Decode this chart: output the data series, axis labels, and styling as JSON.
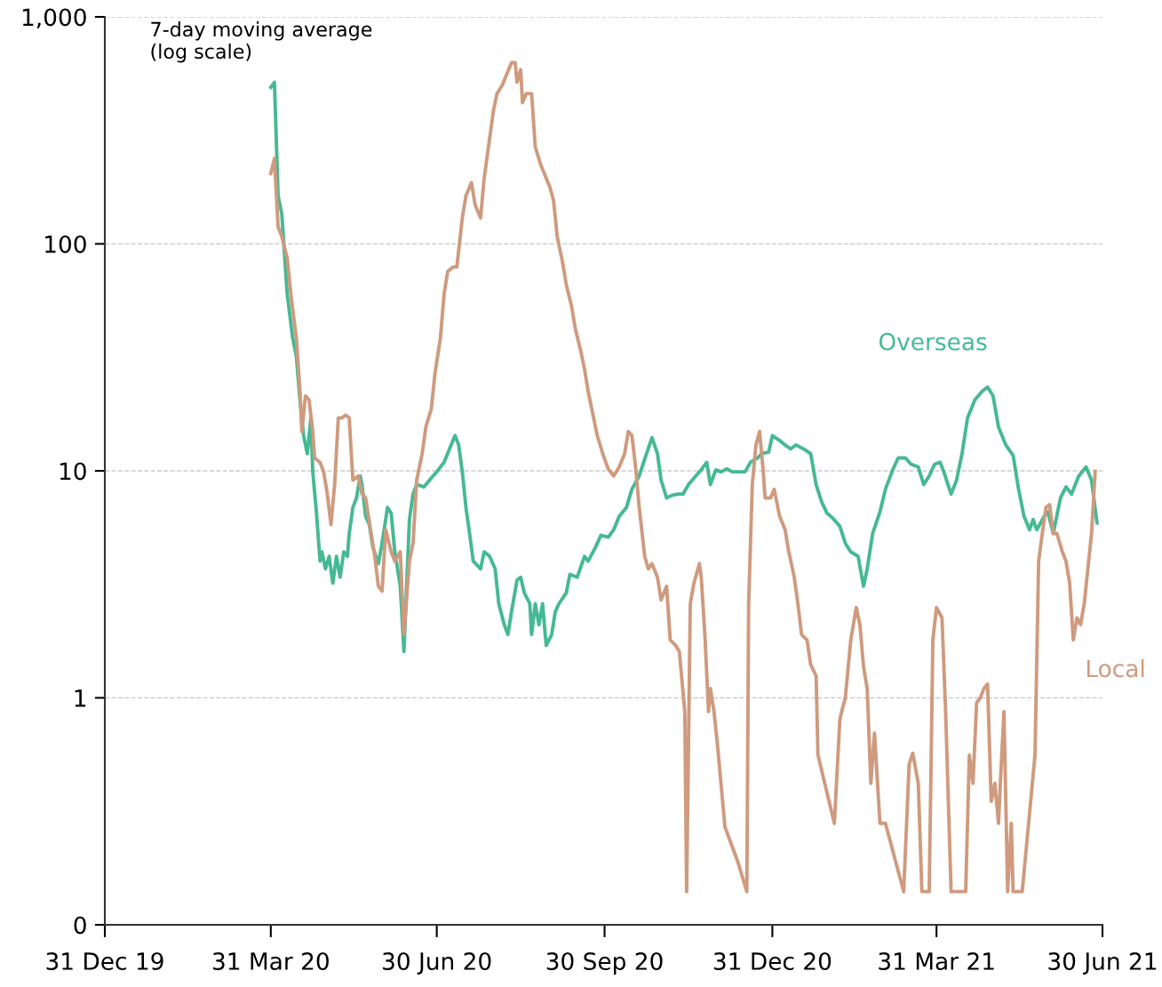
{
  "chart_data": {
    "type": "line",
    "annotations": [
      "7-day moving average\n(log scale)"
    ],
    "log": "y",
    "grid": "y",
    "legend": false,
    "marker": "none",
    "line_style": "solid",
    "xlim": [
      "2019-12-31",
      "2021-06-30"
    ],
    "xticks": [
      {
        "value": "2019-12-31",
        "label": "31 Dec 19"
      },
      {
        "value": "2020-03-31",
        "label": "31 Mar 20"
      },
      {
        "value": "2020-06-30",
        "label": "30 Jun 20"
      },
      {
        "value": "2020-09-30",
        "label": "30 Sep 20"
      },
      {
        "value": "2020-12-31",
        "label": "31 Dec 20"
      },
      {
        "value": "2021-03-31",
        "label": "31 Mar 21"
      },
      {
        "value": "2021-06-30",
        "label": "30 Jun 21"
      }
    ],
    "ylim": [
      0.1,
      1000
    ],
    "yticks": [
      {
        "value": 0.1,
        "label": "0"
      },
      1,
      10,
      100,
      {
        "value": 1000,
        "label": "1,000"
      }
    ],
    "series": [
      {
        "name": "Overseas",
        "color": "#45b994",
        "x": [
          "2020-03-31",
          "2020-04-02",
          "2020-04-04",
          "2020-04-06",
          "2020-04-09",
          "2020-04-12",
          "2020-04-14",
          "2020-04-16",
          "2020-04-18",
          "2020-04-20",
          "2020-04-22",
          "2020-04-23",
          "2020-04-25",
          "2020-04-27",
          "2020-04-28",
          "2020-04-30",
          "2020-05-02",
          "2020-05-04",
          "2020-05-06",
          "2020-05-08",
          "2020-05-10",
          "2020-05-12",
          "2020-05-13",
          "2020-05-15",
          "2020-05-17",
          "2020-05-19",
          "2020-05-20",
          "2020-05-22",
          "2020-05-24",
          "2020-05-26",
          "2020-05-29",
          "2020-05-31",
          "2020-06-03",
          "2020-06-05",
          "2020-06-07",
          "2020-06-10",
          "2020-06-12",
          "2020-06-15",
          "2020-06-17",
          "2020-06-19",
          "2020-06-23",
          "2020-06-27",
          "2020-06-30",
          "2020-07-04",
          "2020-07-07",
          "2020-07-10",
          "2020-07-12",
          "2020-07-14",
          "2020-07-16",
          "2020-07-18",
          "2020-07-20",
          "2020-07-24",
          "2020-07-26",
          "2020-07-29",
          "2020-08-01",
          "2020-08-03",
          "2020-08-06",
          "2020-08-08",
          "2020-08-10",
          "2020-08-13",
          "2020-08-15",
          "2020-08-17",
          "2020-08-20",
          "2020-08-21",
          "2020-08-23",
          "2020-08-25",
          "2020-08-27",
          "2020-08-29",
          "2020-09-01",
          "2020-09-03",
          "2020-09-05",
          "2020-09-09",
          "2020-09-11",
          "2020-09-15",
          "2020-09-19",
          "2020-09-21",
          "2020-09-25",
          "2020-09-28",
          "2020-10-02",
          "2020-10-05",
          "2020-10-08",
          "2020-10-12",
          "2020-10-15",
          "2020-10-19",
          "2020-10-23",
          "2020-10-26",
          "2020-10-29",
          "2020-10-31",
          "2020-11-03",
          "2020-11-06",
          "2020-11-09",
          "2020-11-12",
          "2020-11-15",
          "2020-11-19",
          "2020-11-22",
          "2020-11-25",
          "2020-11-27",
          "2020-11-30",
          "2020-12-03",
          "2020-12-06",
          "2020-12-09",
          "2020-12-12",
          "2020-12-16",
          "2020-12-19",
          "2020-12-23",
          "2020-12-25",
          "2020-12-29",
          "2020-12-31",
          "2021-01-04",
          "2021-01-07",
          "2021-01-10",
          "2021-01-13",
          "2021-01-17",
          "2021-01-21",
          "2021-01-24",
          "2021-01-27",
          "2021-01-30",
          "2021-02-02",
          "2021-02-06",
          "2021-02-09",
          "2021-02-12",
          "2021-02-16",
          "2021-02-19",
          "2021-02-21",
          "2021-02-24",
          "2021-02-28",
          "2021-03-03",
          "2021-03-07",
          "2021-03-10",
          "2021-03-14",
          "2021-03-17",
          "2021-03-21",
          "2021-03-24",
          "2021-03-27",
          "2021-03-30",
          "2021-04-02",
          "2021-04-04",
          "2021-04-08",
          "2021-04-11",
          "2021-04-14",
          "2021-04-17",
          "2021-04-21",
          "2021-04-25",
          "2021-04-28",
          "2021-05-01",
          "2021-05-04",
          "2021-05-08",
          "2021-05-12",
          "2021-05-15",
          "2021-05-18",
          "2021-05-21",
          "2021-05-23",
          "2021-05-25",
          "2021-05-29",
          "2021-05-31",
          "2021-06-03",
          "2021-06-07",
          "2021-06-10",
          "2021-06-13",
          "2021-06-17",
          "2021-06-21",
          "2021-06-24",
          "2021-06-27"
        ],
        "values": [
          489,
          515,
          163,
          136,
          60,
          38.5,
          32,
          20.5,
          14.3,
          11.9,
          17.1,
          9.9,
          6.6,
          4.0,
          4.4,
          3.7,
          4.2,
          3.2,
          4.2,
          3.4,
          4.4,
          4.2,
          5.3,
          6.9,
          7.6,
          9.5,
          8.7,
          6.3,
          5.8,
          4.6,
          3.9,
          4.8,
          6.9,
          6.5,
          4.4,
          3.1,
          1.6,
          6.1,
          7.9,
          8.7,
          8.5,
          9.3,
          9.9,
          10.9,
          12.5,
          14.3,
          13.0,
          9.9,
          6.9,
          5.3,
          4.0,
          3.7,
          4.4,
          4.2,
          3.7,
          2.6,
          2.1,
          1.9,
          2.4,
          3.3,
          3.4,
          2.9,
          2.6,
          1.9,
          2.6,
          2.1,
          2.6,
          1.7,
          1.9,
          2.4,
          2.6,
          2.9,
          3.5,
          3.4,
          4.2,
          4.0,
          4.6,
          5.2,
          5.1,
          5.5,
          6.3,
          6.9,
          8.3,
          9.5,
          11.9,
          14.0,
          11.9,
          9.1,
          7.6,
          7.8,
          7.9,
          7.9,
          8.7,
          9.5,
          10.1,
          10.9,
          8.7,
          10.1,
          9.9,
          10.2,
          9.9,
          9.9,
          9.9,
          10.9,
          11.4,
          11.9,
          12.1,
          14.3,
          13.6,
          13.0,
          12.5,
          13.0,
          12.5,
          11.9,
          8.7,
          7.3,
          6.5,
          6.2,
          5.7,
          4.8,
          4.4,
          4.2,
          3.1,
          3.7,
          5.3,
          6.6,
          8.3,
          10.1,
          11.4,
          11.4,
          10.7,
          10.4,
          8.7,
          9.5,
          10.7,
          10.9,
          9.9,
          7.9,
          9.1,
          11.9,
          17.1,
          20.5,
          22.4,
          23.4,
          21.4,
          15.6,
          13.0,
          11.7,
          8.3,
          6.3,
          5.5,
          6.1,
          5.5,
          6.3,
          6.6,
          5.3,
          7.6,
          8.5,
          7.9,
          9.5,
          10.4,
          9.1,
          5.9
        ]
      },
      {
        "name": "Local",
        "color": "#cf9a7e",
        "x": [
          "2020-03-31",
          "2020-04-02",
          "2020-04-04",
          "2020-04-06",
          "2020-04-09",
          "2020-04-11",
          "2020-04-14",
          "2020-04-16",
          "2020-04-17",
          "2020-04-19",
          "2020-04-21",
          "2020-04-23",
          "2020-04-24",
          "2020-04-27",
          "2020-04-29",
          "2020-05-01",
          "2020-05-03",
          "2020-05-05",
          "2020-05-07",
          "2020-05-09",
          "2020-05-11",
          "2020-05-13",
          "2020-05-15",
          "2020-05-18",
          "2020-05-20",
          "2020-05-22",
          "2020-05-25",
          "2020-05-27",
          "2020-05-29",
          "2020-05-31",
          "2020-06-02",
          "2020-06-05",
          "2020-06-07",
          "2020-06-10",
          "2020-06-12",
          "2020-06-15",
          "2020-06-17",
          "2020-06-19",
          "2020-06-22",
          "2020-06-24",
          "2020-06-27",
          "2020-06-29",
          "2020-07-02",
          "2020-07-04",
          "2020-07-06",
          "2020-07-09",
          "2020-07-11",
          "2020-07-14",
          "2020-07-16",
          "2020-07-19",
          "2020-07-21",
          "2020-07-24",
          "2020-07-26",
          "2020-07-28",
          "2020-07-31",
          "2020-08-02",
          "2020-08-05",
          "2020-08-07",
          "2020-08-10",
          "2020-08-12",
          "2020-08-13",
          "2020-08-15",
          "2020-08-16",
          "2020-08-18",
          "2020-08-21",
          "2020-08-23",
          "2020-08-26",
          "2020-08-28",
          "2020-08-31",
          "2020-09-02",
          "2020-09-04",
          "2020-09-07",
          "2020-09-09",
          "2020-09-12",
          "2020-09-14",
          "2020-09-17",
          "2020-09-19",
          "2020-09-21",
          "2020-09-24",
          "2020-09-26",
          "2020-09-29",
          "2020-10-02",
          "2020-10-05",
          "2020-10-08",
          "2020-10-11",
          "2020-10-13",
          "2020-10-15",
          "2020-10-17",
          "2020-10-19",
          "2020-10-22",
          "2020-10-24",
          "2020-10-26",
          "2020-10-29",
          "2020-10-31",
          "2020-11-03",
          "2020-11-05",
          "2020-11-08",
          "2020-11-10",
          "2020-11-13",
          "2020-11-14",
          "2020-11-16",
          "2020-11-18",
          "2020-11-21",
          "2020-11-22",
          "2020-11-24",
          "2020-11-26",
          "2020-11-27",
          "2020-11-29",
          "2020-12-01",
          "2020-12-05",
          "2020-12-12",
          "2020-12-17",
          "2020-12-18",
          "2020-12-20",
          "2020-12-22",
          "2020-12-24",
          "2020-12-26",
          "2020-12-27",
          "2020-12-30",
          "2021-01-01",
          "2021-01-04",
          "2021-01-07",
          "2021-01-09",
          "2021-01-12",
          "2021-01-14",
          "2021-01-16",
          "2021-01-19",
          "2021-01-21",
          "2021-01-24",
          "2021-01-25",
          "2021-02-03",
          "2021-02-06",
          "2021-02-07",
          "2021-02-09",
          "2021-02-12",
          "2021-02-15",
          "2021-02-17",
          "2021-02-19",
          "2021-02-21",
          "2021-02-23",
          "2021-02-25",
          "2021-02-28",
          "2021-03-03",
          "2021-03-13",
          "2021-03-16",
          "2021-03-18",
          "2021-03-21",
          "2021-03-23",
          "2021-03-27",
          "2021-03-29",
          "2021-03-31",
          "2021-04-03",
          "2021-04-05",
          "2021-04-08",
          "2021-04-16",
          "2021-04-18",
          "2021-04-20",
          "2021-04-22",
          "2021-04-24",
          "2021-04-26",
          "2021-04-28",
          "2021-04-30",
          "2021-05-02",
          "2021-05-04",
          "2021-05-05",
          "2021-05-07",
          "2021-05-09",
          "2021-05-11",
          "2021-05-12",
          "2021-05-17",
          "2021-05-24",
          "2021-05-26",
          "2021-05-28",
          "2021-05-30",
          "2021-06-01",
          "2021-06-03",
          "2021-06-05",
          "2021-06-08",
          "2021-06-10",
          "2021-06-12",
          "2021-06-14",
          "2021-06-16",
          "2021-06-18",
          "2021-06-20",
          "2021-06-22",
          "2021-06-24",
          "2021-06-26"
        ],
        "values": [
          204,
          238,
          119,
          108,
          86.5,
          60,
          38.5,
          22.4,
          14.9,
          21.4,
          20.5,
          14.9,
          11.4,
          10.9,
          9.9,
          7.9,
          5.8,
          8.7,
          17.1,
          17.1,
          17.6,
          17.1,
          9.1,
          9.5,
          7.9,
          7.6,
          5.3,
          4.2,
          3.1,
          2.95,
          5.5,
          4.4,
          4.0,
          4.4,
          1.9,
          4.0,
          4.8,
          9.1,
          11.9,
          15.6,
          18.7,
          26.8,
          38.5,
          60,
          75.6,
          79.1,
          79.1,
          130,
          163,
          186,
          149,
          130,
          195,
          255,
          383,
          459,
          502,
          550,
          629,
          629,
          515,
          585,
          419,
          459,
          459,
          267,
          223,
          204,
          178,
          156,
          108,
          82.7,
          66.1,
          52.7,
          42.1,
          33.6,
          28.1,
          22.4,
          17.1,
          14.3,
          11.9,
          10.2,
          9.5,
          10.4,
          11.9,
          14.9,
          14.3,
          10.4,
          6.9,
          4.2,
          3.7,
          3.9,
          3.4,
          2.7,
          3.1,
          1.8,
          1.7,
          1.6,
          0.87,
          0.14,
          2.6,
          3.2,
          3.9,
          3.4,
          1.9,
          0.87,
          1.1,
          0.87,
          0.61,
          0.27,
          0.19,
          0.14,
          2.6,
          8.7,
          13.0,
          14.9,
          9.95,
          7.6,
          7.6,
          8.3,
          6.3,
          5.5,
          4.4,
          3.4,
          2.6,
          1.9,
          1.8,
          1.4,
          1.25,
          0.56,
          0.28,
          0.8,
          0.87,
          1.0,
          1.8,
          2.5,
          2.1,
          1.37,
          1.1,
          0.42,
          0.7,
          0.28,
          0.28,
          0.14,
          0.51,
          0.57,
          0.42,
          0.14,
          0.14,
          1.8,
          2.5,
          2.25,
          0.87,
          0.14,
          0.14,
          0.56,
          0.42,
          0.95,
          1.0,
          1.1,
          1.15,
          0.35,
          0.42,
          0.28,
          0.42,
          0.87,
          0.14,
          0.28,
          0.14,
          0.14,
          0.56,
          4.0,
          5.3,
          6.9,
          7.1,
          5.3,
          5.3,
          4.4,
          4.0,
          3.2,
          1.8,
          2.25,
          2.1,
          2.6,
          3.7,
          5.3,
          9.95
        ]
      }
    ]
  }
}
